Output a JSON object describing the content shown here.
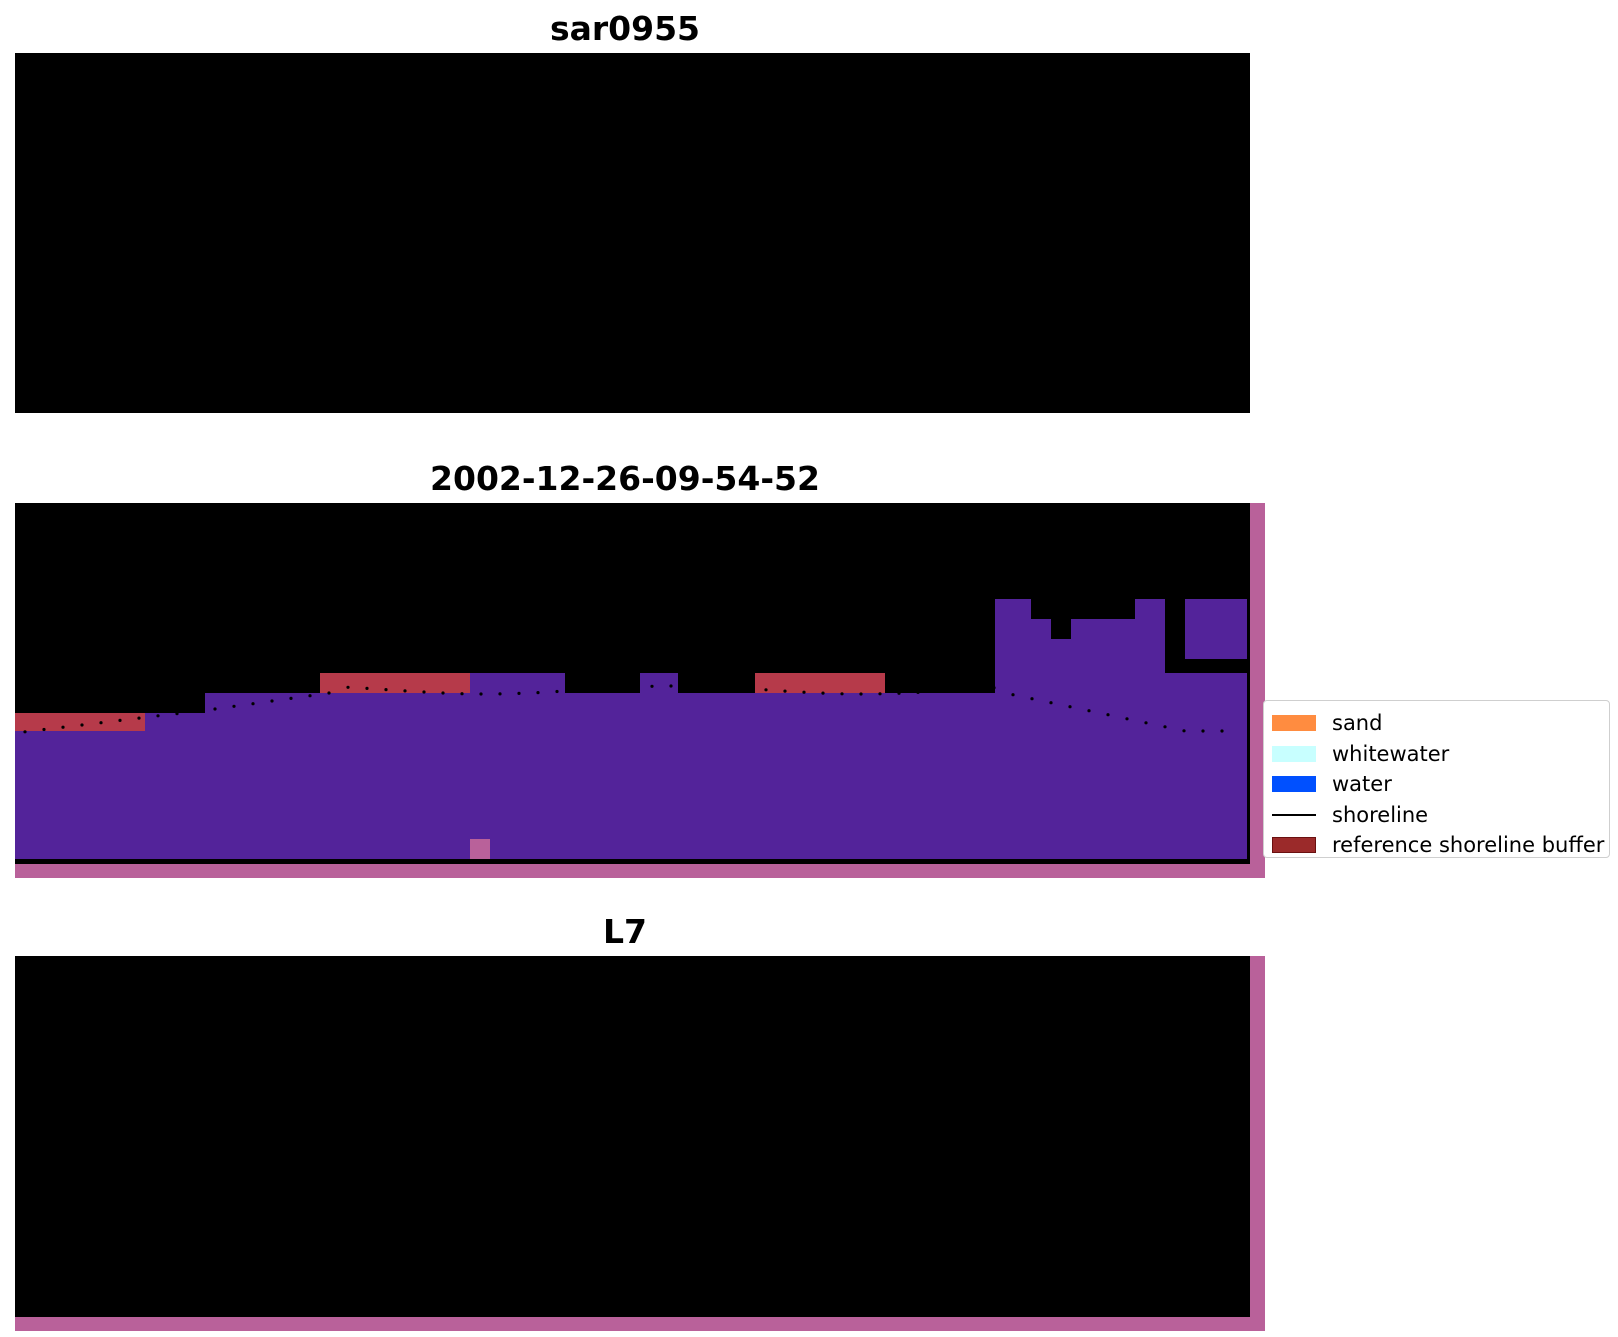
{
  "panels": [
    {
      "title": "sar0955"
    },
    {
      "title": "2002-12-26-09-54-52"
    },
    {
      "title": "L7"
    }
  ],
  "legend": {
    "items": [
      {
        "label": "sand",
        "color": "#ff8c40",
        "type": "patch"
      },
      {
        "label": "whitewater",
        "color": "#c8ffff",
        "type": "patch"
      },
      {
        "label": "water",
        "color": "#0050ff",
        "type": "patch"
      },
      {
        "label": "shoreline",
        "color": "#000000",
        "type": "line"
      },
      {
        "label": "reference shoreline buffer",
        "color": "#9b2a2a",
        "type": "patch"
      }
    ]
  },
  "colors": {
    "rgb_sky": "#8aa3be",
    "rgb_wave": "#dde9f2",
    "rgb_water": "#3f74ad",
    "rgb_deep": "#1e50b8",
    "class_background": "#b9619a",
    "class_land": "#8c3f80",
    "class_water": "#53239a",
    "class_buffer": "#b63a4a",
    "mndwi_land": "#c8406a",
    "mndwi_water": "#6a139c"
  }
}
